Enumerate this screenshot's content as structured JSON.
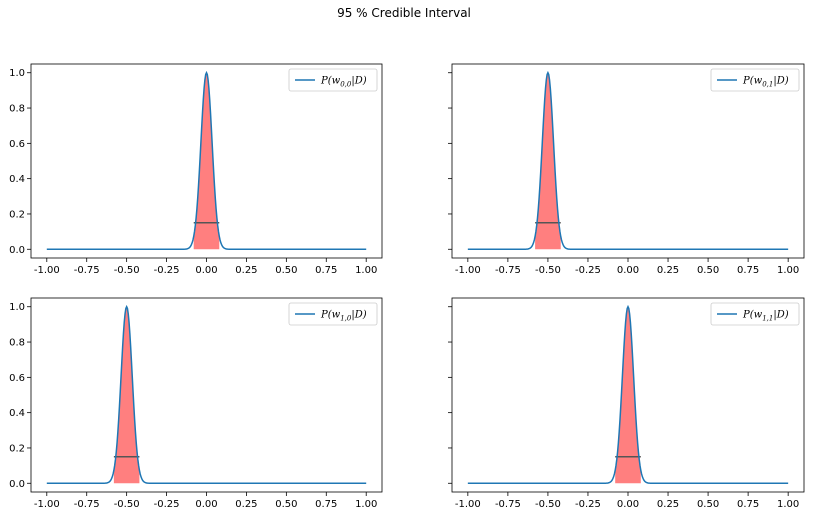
{
  "title": "95 % Credible Interval",
  "colors": {
    "curve": "#1f77b4",
    "fill": "#ff7f7f",
    "hline": "#555555"
  },
  "chart_data": [
    {
      "type": "line",
      "legend": "P(w0,0|D)",
      "legend_parts": {
        "pre": "P(w",
        "sub": "0,0",
        "post": "|D)"
      },
      "legend_position": "upper-right",
      "distribution": {
        "kind": "gaussian",
        "mean": 0.0,
        "sigma": 0.035,
        "peak": 1.0
      },
      "interval": [
        -0.08,
        0.08
      ],
      "hline_y": 0.15,
      "xlim": [
        -1.0,
        1.0
      ],
      "ylim": [
        0.0,
        1.0
      ],
      "xticks": [
        "-1.00",
        "-0.75",
        "-0.50",
        "-0.25",
        "0.00",
        "0.25",
        "0.50",
        "0.75",
        "1.00"
      ],
      "yticks": [
        "0.0",
        "0.2",
        "0.4",
        "0.6",
        "0.8",
        "1.0"
      ],
      "show_ytick_labels": true
    },
    {
      "type": "line",
      "legend": "P(w0,1|D)",
      "legend_parts": {
        "pre": "P(w",
        "sub": "0,1",
        "post": "|D)"
      },
      "legend_position": "upper-right",
      "distribution": {
        "kind": "gaussian",
        "mean": -0.5,
        "sigma": 0.035,
        "peak": 1.0
      },
      "interval": [
        -0.58,
        -0.42
      ],
      "hline_y": 0.15,
      "xlim": [
        -1.0,
        1.0
      ],
      "ylim": [
        0.0,
        1.0
      ],
      "xticks": [
        "-1.00",
        "-0.75",
        "-0.50",
        "-0.25",
        "0.00",
        "0.25",
        "0.50",
        "0.75",
        "1.00"
      ],
      "yticks": [
        "0.0",
        "0.2",
        "0.4",
        "0.6",
        "0.8",
        "1.0"
      ],
      "show_ytick_labels": false
    },
    {
      "type": "line",
      "legend": "P(w1,0|D)",
      "legend_parts": {
        "pre": "P(w",
        "sub": "1,0",
        "post": "|D)"
      },
      "legend_position": "upper-right",
      "distribution": {
        "kind": "gaussian",
        "mean": -0.5,
        "sigma": 0.035,
        "peak": 1.0
      },
      "interval": [
        -0.58,
        -0.42
      ],
      "hline_y": 0.15,
      "xlim": [
        -1.0,
        1.0
      ],
      "ylim": [
        0.0,
        1.0
      ],
      "xticks": [
        "-1.00",
        "-0.75",
        "-0.50",
        "-0.25",
        "0.00",
        "0.25",
        "0.50",
        "0.75",
        "1.00"
      ],
      "yticks": [
        "0.0",
        "0.2",
        "0.4",
        "0.6",
        "0.8",
        "1.0"
      ],
      "show_ytick_labels": true
    },
    {
      "type": "line",
      "legend": "P(w1,1|D)",
      "legend_parts": {
        "pre": "P(w",
        "sub": "1,1",
        "post": "|D)"
      },
      "legend_position": "upper-right",
      "distribution": {
        "kind": "gaussian",
        "mean": 0.0,
        "sigma": 0.035,
        "peak": 1.0
      },
      "interval": [
        -0.08,
        0.08
      ],
      "hline_y": 0.15,
      "xlim": [
        -1.0,
        1.0
      ],
      "ylim": [
        0.0,
        1.0
      ],
      "xticks": [
        "-1.00",
        "-0.75",
        "-0.50",
        "-0.25",
        "0.00",
        "0.25",
        "0.50",
        "0.75",
        "1.00"
      ],
      "yticks": [
        "0.0",
        "0.2",
        "0.4",
        "0.6",
        "0.8",
        "1.0"
      ],
      "show_ytick_labels": false
    }
  ]
}
